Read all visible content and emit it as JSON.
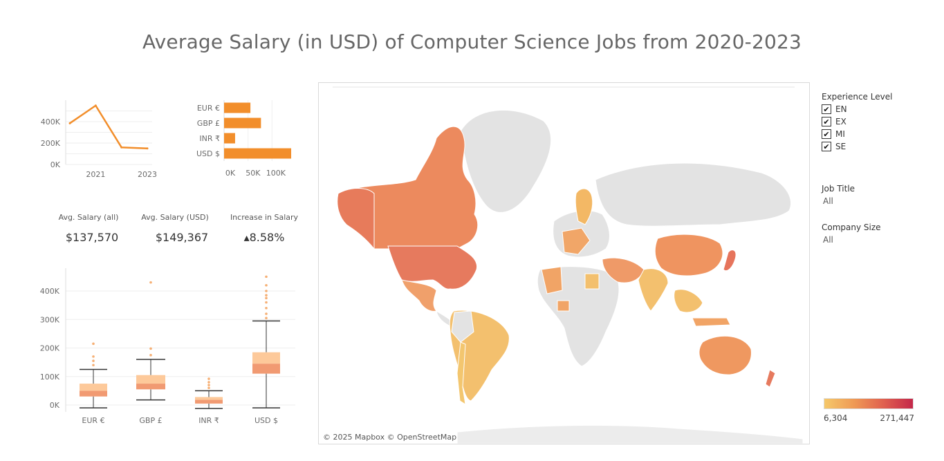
{
  "title": "Average Salary (in USD) of Computer Science Jobs from 2020-2023",
  "colors": {
    "accent": "#f28e2b",
    "box_upper": "#fdc99a",
    "box_lower": "#f19a72",
    "map_land": "#e3e3e3"
  },
  "chart_data": [
    {
      "type": "line",
      "x": [
        2020,
        2021,
        2022,
        2023
      ],
      "values": [
        385000,
        550000,
        160000,
        150000
      ],
      "xtick_labels": [
        "2021",
        "2023"
      ],
      "ytick_labels": [
        "400K",
        "200K",
        "0K"
      ],
      "ylim": [
        0,
        600000
      ],
      "title": "",
      "xlabel": "",
      "ylabel": ""
    },
    {
      "type": "bar",
      "orientation": "horizontal",
      "categories": [
        "EUR €",
        "GBP £",
        "INR ₹",
        "USD $"
      ],
      "values": [
        55000,
        77000,
        23000,
        140000
      ],
      "xtick_labels": [
        "0K",
        "50K",
        "100K"
      ],
      "title": "",
      "xlabel": "",
      "ylabel": ""
    },
    {
      "type": "box",
      "categories": [
        "EUR €",
        "GBP £",
        "INR ₹",
        "USD $"
      ],
      "ytick_labels": [
        "400K",
        "300K",
        "200K",
        "100K",
        "0K"
      ],
      "ylim": [
        -15000,
        470000
      ],
      "boxes": [
        {
          "whisker_low": -10000,
          "q1": 30000,
          "median": 50000,
          "q3": 75000,
          "whisker_high": 125000,
          "outliers": [
            140000,
            155000,
            170000,
            215000
          ]
        },
        {
          "whisker_low": 18000,
          "q1": 55000,
          "median": 75000,
          "q3": 105000,
          "whisker_high": 160000,
          "outliers": [
            175000,
            198000,
            430000
          ]
        },
        {
          "whisker_low": -12000,
          "q1": 5000,
          "median": 18000,
          "q3": 28000,
          "whisker_high": 50000,
          "outliers": [
            60000,
            70000,
            80000,
            92000
          ]
        },
        {
          "whisker_low": -10000,
          "q1": 110000,
          "median": 145000,
          "q3": 185000,
          "whisker_high": 295000,
          "outliers": [
            305000,
            320000,
            340000,
            360000,
            375000,
            385000,
            400000,
            420000,
            450000
          ]
        }
      ],
      "title": "",
      "xlabel": "",
      "ylabel": ""
    }
  ],
  "kpis": [
    {
      "label": "Avg. Salary (all)",
      "value": "$137,570"
    },
    {
      "label": "Avg. Salary (USD)",
      "value": "$149,367"
    },
    {
      "label": "Increase in Salary",
      "value": "▴8.58%"
    }
  ],
  "map": {
    "attribution": "© 2025 Mapbox © OpenStreetMap"
  },
  "filters": {
    "experience": {
      "title": "Experience Level",
      "items": [
        {
          "label": "EN",
          "checked": true
        },
        {
          "label": "EX",
          "checked": true
        },
        {
          "label": "MI",
          "checked": true
        },
        {
          "label": "SE",
          "checked": true
        }
      ]
    },
    "job_title": {
      "title": "Job Title",
      "value": "All"
    },
    "company_size": {
      "title": "Company Size",
      "value": "All"
    }
  },
  "legend": {
    "min": "6,304",
    "max": "271,447"
  }
}
